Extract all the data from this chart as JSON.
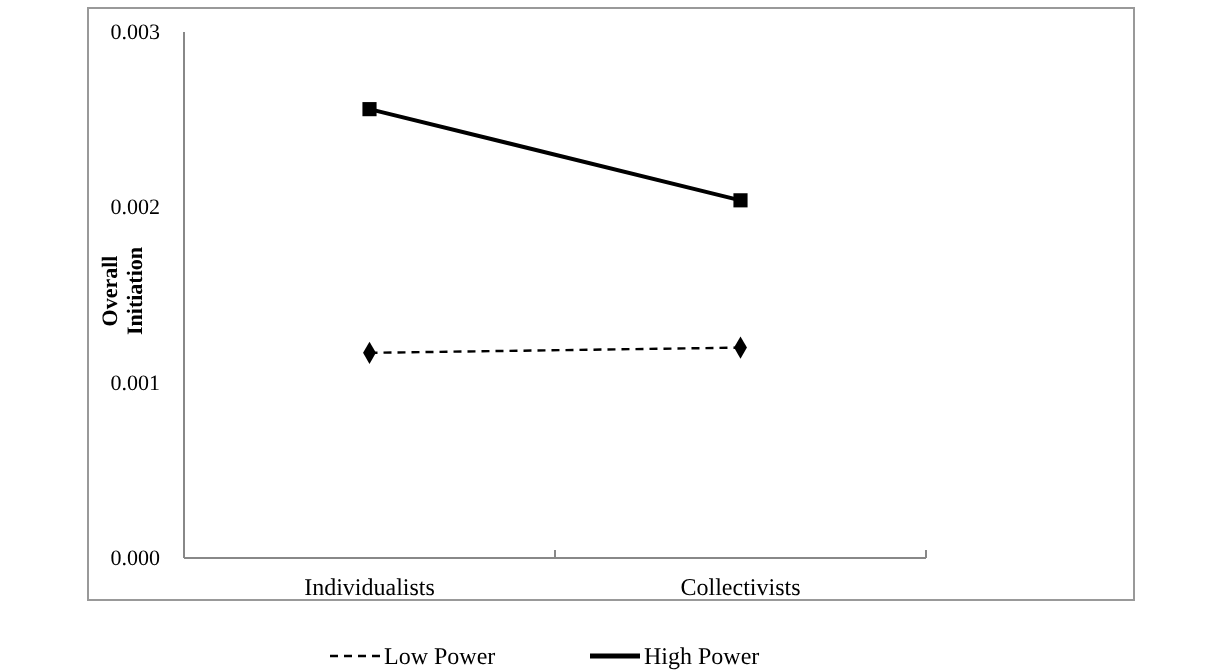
{
  "chart_data": {
    "type": "line",
    "ylabel": "Overall Initiation",
    "categories": [
      "Individualists",
      "Collectivists"
    ],
    "series": [
      {
        "name": "Low Power",
        "color": "#000000",
        "values": [
          0.00117,
          0.0012
        ],
        "marker": "diamond",
        "line_style": "dashed"
      },
      {
        "name": "High Power",
        "color": "#000000",
        "values": [
          0.00256,
          0.00204
        ],
        "marker": "square",
        "line_style": "solid"
      }
    ],
    "ylim": [
      0,
      0.003
    ],
    "yticks": [
      {
        "value": 0,
        "label": "0.000"
      },
      {
        "value": 0.001,
        "label": "0.001"
      },
      {
        "value": 0.002,
        "label": "0.002"
      },
      {
        "value": 0.003,
        "label": "0.003"
      }
    ],
    "grid": false,
    "legend": "bottom"
  }
}
